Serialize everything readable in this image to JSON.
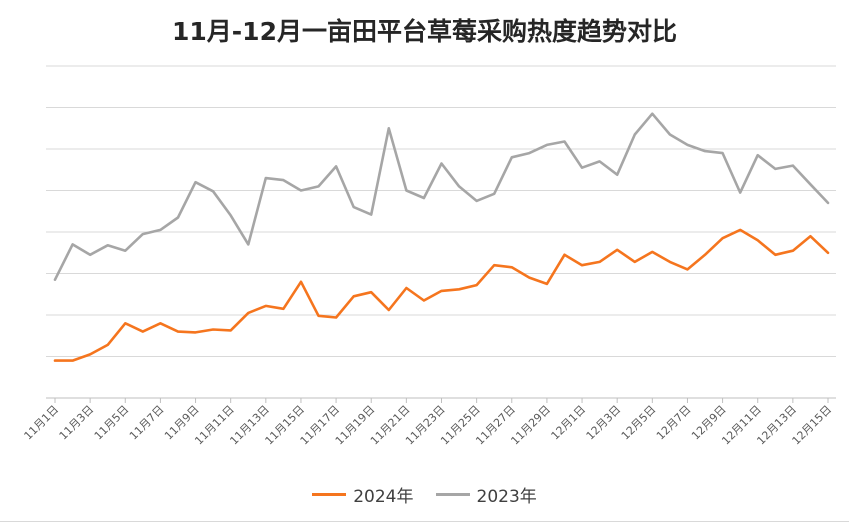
{
  "chart_data": {
    "type": "line",
    "title": "11月-12月一亩田平台草莓采购热度趋势对比",
    "xlabel": "",
    "ylabel": "",
    "ylim": [
      0,
      8
    ],
    "grid": true,
    "y_tick_labels_shown": false,
    "legend_position": "bottom",
    "x": [
      "11月1日",
      "11月2日",
      "11月3日",
      "11月4日",
      "11月5日",
      "11月6日",
      "11月7日",
      "11月8日",
      "11月9日",
      "11月10日",
      "11月11日",
      "11月12日",
      "11月13日",
      "11月14日",
      "11月15日",
      "11月16日",
      "11月17日",
      "11月18日",
      "11月19日",
      "11月20日",
      "11月21日",
      "11月22日",
      "11月23日",
      "11月24日",
      "11月25日",
      "11月26日",
      "11月27日",
      "11月28日",
      "11月29日",
      "11月30日",
      "12月1日",
      "12月2日",
      "12月3日",
      "12月4日",
      "12月5日",
      "12月6日",
      "12月7日",
      "12月8日",
      "12月9日",
      "12月10日",
      "12月11日",
      "12月12日",
      "12月13日",
      "12月14日",
      "12月15日"
    ],
    "x_tick_labels": [
      "11月1日",
      "11月3日",
      "11月5日",
      "11月7日",
      "11月9日",
      "11月11日",
      "11月13日",
      "11月15日",
      "11月17日",
      "11月19日",
      "11月21日",
      "11月23日",
      "11月25日",
      "11月27日",
      "11月29日",
      "12月1日",
      "12月3日",
      "12月5日",
      "12月7日",
      "12月9日",
      "12月11日",
      "12月13日",
      "12月15日"
    ],
    "series": [
      {
        "name": "2024年",
        "color": "#f5751e",
        "values": [
          0.9,
          0.9,
          1.05,
          1.28,
          1.8,
          1.6,
          1.8,
          1.6,
          1.58,
          1.65,
          1.63,
          2.05,
          2.22,
          2.15,
          2.8,
          1.98,
          1.94,
          2.45,
          2.55,
          2.12,
          2.65,
          2.35,
          2.58,
          2.62,
          2.72,
          3.2,
          3.15,
          2.9,
          2.75,
          3.45,
          3.2,
          3.28,
          3.57,
          3.28,
          3.52,
          3.28,
          3.1,
          3.45,
          3.85,
          4.05,
          3.8,
          3.45,
          3.55,
          3.9,
          3.5
        ]
      },
      {
        "name": "2023年",
        "color": "#a6a6a6",
        "values": [
          2.85,
          3.7,
          3.45,
          3.68,
          3.55,
          3.95,
          4.05,
          4.35,
          5.2,
          4.98,
          4.4,
          3.7,
          5.3,
          5.25,
          5.0,
          5.1,
          5.58,
          4.6,
          4.42,
          6.5,
          5.0,
          4.82,
          5.65,
          5.1,
          4.75,
          4.92,
          5.8,
          5.9,
          6.1,
          6.18,
          5.55,
          5.7,
          5.38,
          6.35,
          6.85,
          6.35,
          6.1,
          5.95,
          5.9,
          4.95,
          5.85,
          5.52,
          5.6,
          5.15,
          4.7
        ]
      }
    ]
  }
}
